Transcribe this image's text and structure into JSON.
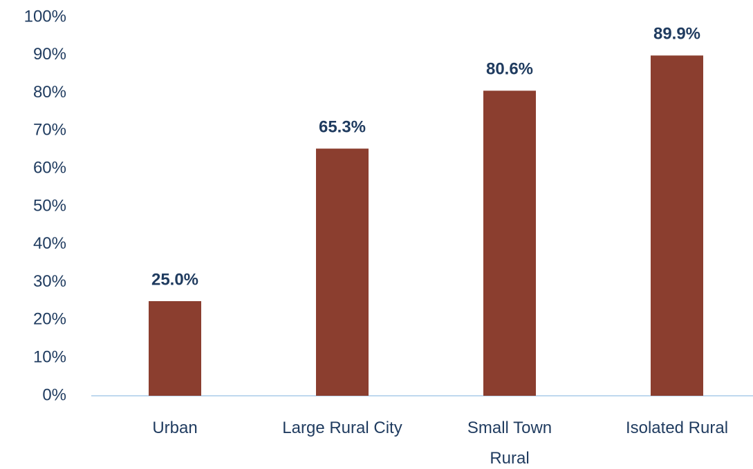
{
  "chart_data": {
    "type": "bar",
    "categories": [
      "Urban",
      "Large Rural City",
      "Small Town\nRural",
      "Isolated Rural"
    ],
    "values": [
      25.0,
      65.3,
      80.6,
      89.9
    ],
    "value_labels": [
      "25.0%",
      "65.3%",
      "80.6%",
      "89.9%"
    ],
    "color": "#8b3e2f",
    "ylim": [
      0,
      100
    ],
    "yticks": [
      {
        "value": 0,
        "label": "0%"
      },
      {
        "value": 10,
        "label": "10%"
      },
      {
        "value": 20,
        "label": "20%"
      },
      {
        "value": 30,
        "label": "30%"
      },
      {
        "value": 40,
        "label": "40%"
      },
      {
        "value": 50,
        "label": "50%"
      },
      {
        "value": 60,
        "label": "60%"
      },
      {
        "value": 70,
        "label": "70%"
      },
      {
        "value": 80,
        "label": "80%"
      },
      {
        "value": 90,
        "label": "90%"
      },
      {
        "value": 100,
        "label": "100%"
      }
    ],
    "grid": false
  }
}
